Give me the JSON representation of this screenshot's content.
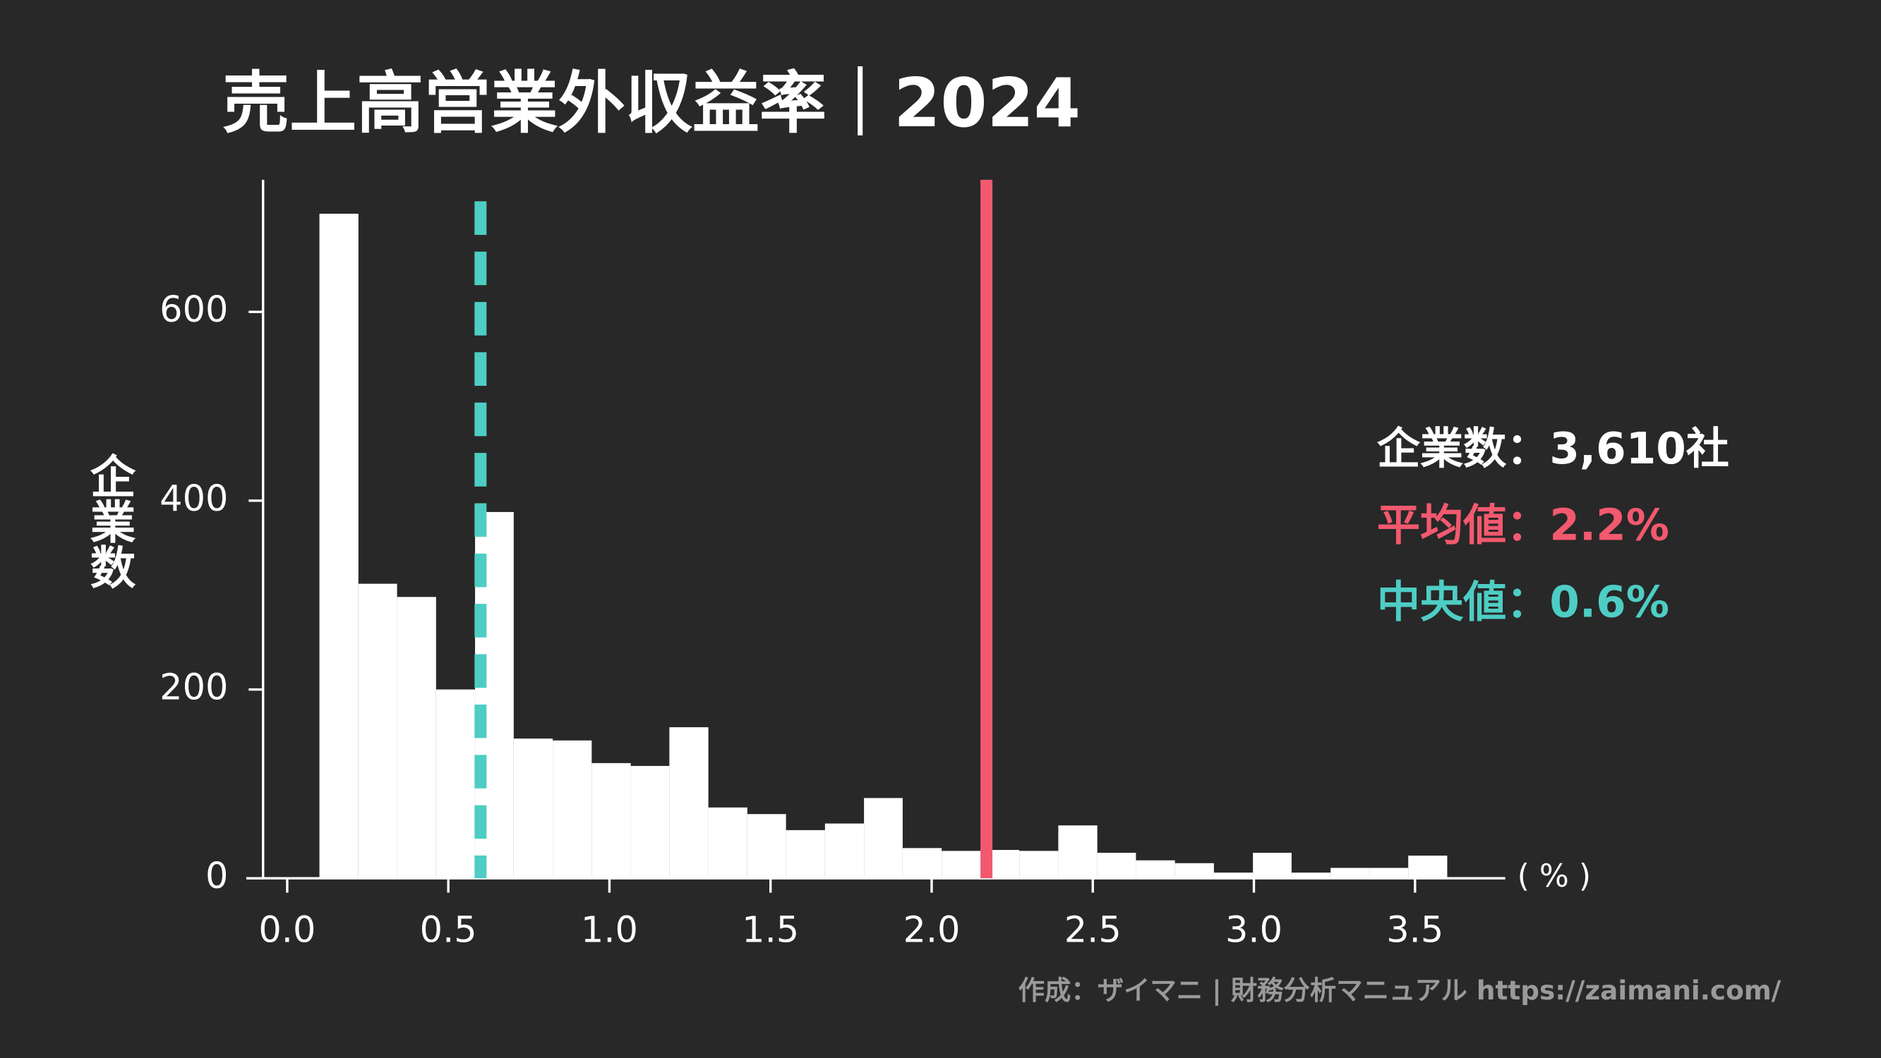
{
  "chart_data": {
    "type": "histogram",
    "title": "売上高営業外収益率｜2024",
    "x_label": "( % )",
    "y_label": "企業数",
    "bins": [
      0.1,
      0.221,
      0.341,
      0.462,
      0.583,
      0.703,
      0.824,
      0.945,
      1.066,
      1.186,
      1.307,
      1.428,
      1.548,
      1.669,
      1.79,
      1.91,
      2.031,
      2.152,
      2.272,
      2.393,
      2.514,
      2.634,
      2.755,
      2.876,
      2.997,
      3.117,
      3.238,
      3.359,
      3.479,
      3.6
    ],
    "values": [
      704,
      312,
      298,
      200,
      388,
      148,
      146,
      122,
      119,
      160,
      75,
      68,
      51,
      58,
      85,
      32,
      29,
      30,
      29,
      56,
      27,
      19,
      16,
      6,
      27,
      6,
      11,
      11,
      24
    ],
    "color": "#ffffff",
    "xlim": [
      -0.127,
      3.78
    ],
    "ylim": [
      0,
      740
    ],
    "xticks": [
      {
        "value": 0,
        "label": "0.0"
      },
      {
        "value": 0.5,
        "label": "0.5"
      },
      {
        "value": 1,
        "label": "1.0"
      },
      {
        "value": 1.5,
        "label": "1.5"
      },
      {
        "value": 2,
        "label": "2.0"
      },
      {
        "value": 2.5,
        "label": "2.5"
      },
      {
        "value": 3,
        "label": "3.0"
      },
      {
        "value": 3.5,
        "label": "3.5"
      }
    ],
    "yticks": [
      0,
      200,
      400,
      600
    ],
    "mean_line": {
      "value": 2.17,
      "color": "#f2596e"
    },
    "median_line": {
      "value": 0.6,
      "color": "#4ecdc4"
    },
    "stats": [
      {
        "text": "企業数：3,610社",
        "color": "#ffffff"
      },
      {
        "text": "平均値：2.2%",
        "color": "#f2596e"
      },
      {
        "text": "中央値：0.6%",
        "color": "#4ecdc4"
      }
    ],
    "credit": "作成：ザイマニ | 財務分析マニュアル https://zaimani.com/"
  }
}
